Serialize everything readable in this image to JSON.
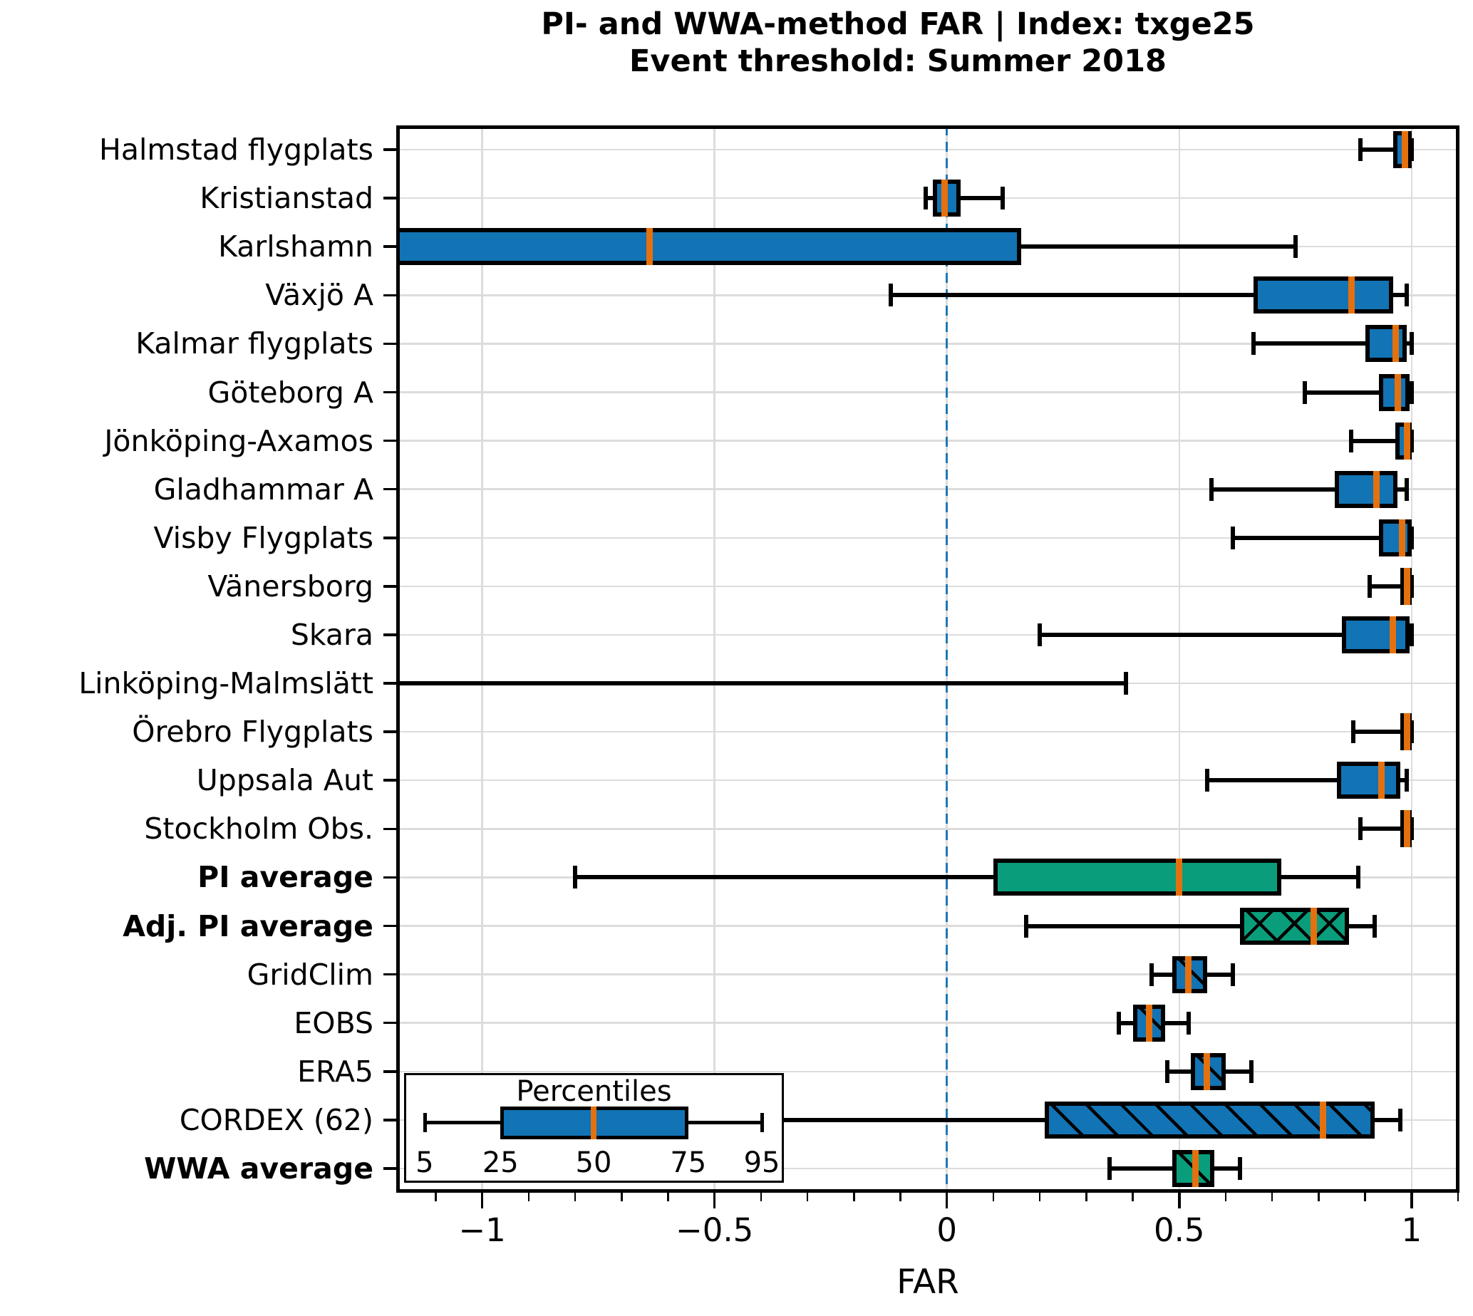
{
  "title": {
    "line1": "PI- and WWA-method FAR | Index: txge25",
    "line2": "Event threshold: Summer 2018"
  },
  "axes": {
    "xlabel": "FAR",
    "major_tick_labels": [
      "−1",
      "−0.5",
      "0",
      "0.5",
      "1"
    ]
  },
  "legend": {
    "title": "Percentiles",
    "labels": [
      "5",
      "25",
      "50",
      "75",
      "95"
    ]
  },
  "colors": {
    "blue": "#1273b5",
    "green": "#0a9d7c",
    "median": "#e4710e",
    "zero_line": "#1f77b4",
    "grid": "#dcdcdc",
    "box_edge": "#000000"
  },
  "chart_data": {
    "type": "boxplot-horizontal",
    "title": "PI- and WWA-method FAR | Index: txge25 — Event threshold: Summer 2018",
    "xlabel": "FAR",
    "xlim": [
      -1.185,
      1.103
    ],
    "major_ticks": [
      -1,
      -0.5,
      0,
      0.5,
      1
    ],
    "minor_tick_step": 0.1,
    "zero_reference_line": 0,
    "grid": true,
    "percentile_levels": [
      5,
      25,
      50,
      75,
      95
    ],
    "legend_position": "lower-left",
    "rows": [
      {
        "label": "Halmstad flygplats",
        "bold": false,
        "fill": "blue",
        "hatch": null,
        "values": [
          0.89,
          0.96,
          0.985,
          1.0,
          1.0
        ]
      },
      {
        "label": "Kristianstad",
        "bold": false,
        "fill": "blue",
        "hatch": null,
        "values": [
          -0.045,
          -0.03,
          -0.005,
          0.03,
          0.12
        ]
      },
      {
        "label": "Karlshamn",
        "bold": false,
        "fill": "blue",
        "hatch": null,
        "values": [
          -1.3,
          -1.3,
          -0.64,
          0.16,
          0.75
        ],
        "clipped_left": true
      },
      {
        "label": "Växjö A",
        "bold": false,
        "fill": "blue",
        "hatch": null,
        "values": [
          -0.12,
          0.66,
          0.87,
          0.96,
          0.99
        ]
      },
      {
        "label": "Kalmar flygplats",
        "bold": false,
        "fill": "blue",
        "hatch": null,
        "values": [
          0.66,
          0.9,
          0.965,
          0.99,
          1.0
        ]
      },
      {
        "label": "Göteborg A",
        "bold": false,
        "fill": "blue",
        "hatch": null,
        "values": [
          0.77,
          0.93,
          0.97,
          0.995,
          1.0
        ]
      },
      {
        "label": "Jönköping-Axamos",
        "bold": false,
        "fill": "blue",
        "hatch": null,
        "values": [
          0.87,
          0.965,
          0.99,
          1.0,
          1.0
        ]
      },
      {
        "label": "Gladhammar A",
        "bold": false,
        "fill": "blue",
        "hatch": null,
        "values": [
          0.57,
          0.835,
          0.925,
          0.97,
          0.99
        ]
      },
      {
        "label": "Visby Flygplats",
        "bold": false,
        "fill": "blue",
        "hatch": null,
        "values": [
          0.615,
          0.93,
          0.98,
          1.0,
          1.0
        ]
      },
      {
        "label": "Vänersborg",
        "bold": false,
        "fill": "blue",
        "hatch": null,
        "values": [
          0.91,
          0.975,
          0.99,
          1.0,
          1.0
        ]
      },
      {
        "label": "Skara",
        "bold": false,
        "fill": "blue",
        "hatch": null,
        "values": [
          0.2,
          0.85,
          0.96,
          0.995,
          1.0
        ]
      },
      {
        "label": "Linköping-Malmslätt",
        "bold": false,
        "fill": "blue",
        "hatch": null,
        "values": [
          -1.3,
          -1.3,
          -1.3,
          -1.3,
          0.385
        ],
        "clipped_left": true
      },
      {
        "label": "Örebro Flygplats",
        "bold": false,
        "fill": "blue",
        "hatch": null,
        "values": [
          0.875,
          0.975,
          0.99,
          1.0,
          1.0
        ]
      },
      {
        "label": "Uppsala Aut",
        "bold": false,
        "fill": "blue",
        "hatch": null,
        "values": [
          0.56,
          0.84,
          0.935,
          0.975,
          0.99
        ]
      },
      {
        "label": "Stockholm Obs.",
        "bold": false,
        "fill": "blue",
        "hatch": null,
        "values": [
          0.89,
          0.975,
          0.99,
          1.0,
          1.0
        ]
      },
      {
        "label": "PI average",
        "bold": true,
        "fill": "green",
        "hatch": null,
        "values": [
          -0.8,
          0.1,
          0.5,
          0.72,
          0.885
        ]
      },
      {
        "label": "Adj. PI average",
        "bold": true,
        "fill": "green",
        "hatch": "cross",
        "values": [
          0.17,
          0.63,
          0.79,
          0.865,
          0.92
        ]
      },
      {
        "label": "GridClim",
        "bold": false,
        "fill": "blue",
        "hatch": "slash",
        "values": [
          0.44,
          0.485,
          0.52,
          0.56,
          0.615
        ]
      },
      {
        "label": "EOBS",
        "bold": false,
        "fill": "blue",
        "hatch": "slash",
        "values": [
          0.37,
          0.4,
          0.435,
          0.47,
          0.52
        ]
      },
      {
        "label": "ERA5",
        "bold": false,
        "fill": "blue",
        "hatch": "slash",
        "values": [
          0.475,
          0.525,
          0.56,
          0.6,
          0.655
        ]
      },
      {
        "label": "CORDEX (62)",
        "bold": false,
        "fill": "blue",
        "hatch": "slash",
        "values": [
          -0.42,
          0.21,
          0.81,
          0.92,
          0.975
        ]
      },
      {
        "label": "WWA average",
        "bold": true,
        "fill": "green",
        "hatch": "slash",
        "values": [
          0.35,
          0.485,
          0.535,
          0.575,
          0.63
        ]
      }
    ]
  }
}
